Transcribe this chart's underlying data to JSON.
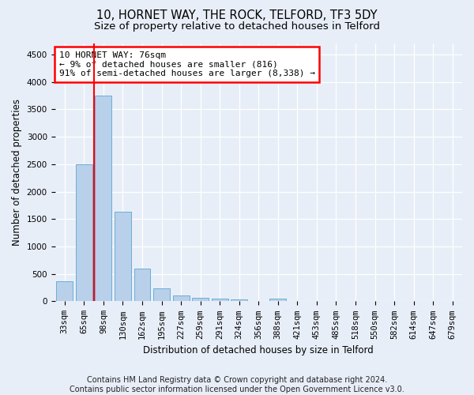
{
  "title1": "10, HORNET WAY, THE ROCK, TELFORD, TF3 5DY",
  "title2": "Size of property relative to detached houses in Telford",
  "xlabel": "Distribution of detached houses by size in Telford",
  "ylabel": "Number of detached properties",
  "categories": [
    "33sqm",
    "65sqm",
    "98sqm",
    "130sqm",
    "162sqm",
    "195sqm",
    "227sqm",
    "259sqm",
    "291sqm",
    "324sqm",
    "356sqm",
    "388sqm",
    "421sqm",
    "453sqm",
    "485sqm",
    "518sqm",
    "550sqm",
    "582sqm",
    "614sqm",
    "647sqm",
    "679sqm"
  ],
  "values": [
    360,
    2500,
    3750,
    1640,
    590,
    230,
    110,
    65,
    45,
    35,
    0,
    50,
    0,
    0,
    0,
    0,
    0,
    0,
    0,
    0,
    0
  ],
  "bar_color": "#b8d0ea",
  "bar_edge_color": "#6aaed6",
  "vline_x": 1.5,
  "vline_color": "red",
  "annotation_text": "10 HORNET WAY: 76sqm\n← 9% of detached houses are smaller (816)\n91% of semi-detached houses are larger (8,338) →",
  "annotation_box_facecolor": "white",
  "annotation_box_edgecolor": "red",
  "ylim": [
    0,
    4700
  ],
  "yticks": [
    0,
    500,
    1000,
    1500,
    2000,
    2500,
    3000,
    3500,
    4000,
    4500
  ],
  "footer": "Contains HM Land Registry data © Crown copyright and database right 2024.\nContains public sector information licensed under the Open Government Licence v3.0.",
  "bg_color": "#e8eef8",
  "plot_bg_color": "#e8eef8",
  "title1_fontsize": 10.5,
  "title2_fontsize": 9.5,
  "xlabel_fontsize": 8.5,
  "ylabel_fontsize": 8.5,
  "annotation_fontsize": 8,
  "tick_fontsize": 7.5,
  "footer_fontsize": 7
}
